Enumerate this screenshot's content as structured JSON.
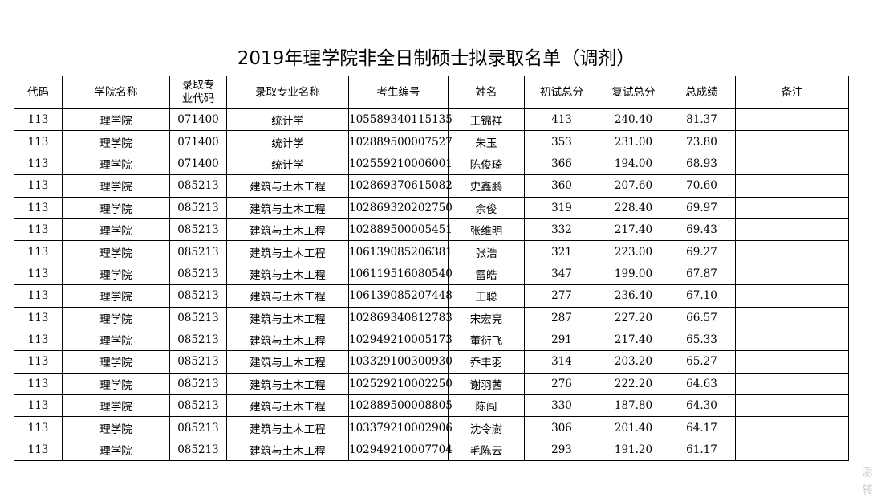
{
  "header": {
    "title": "2019年理学院非全日制硕士拟录取名单（调剂）"
  },
  "table": {
    "columns": [
      "代码",
      "学院名称",
      "录取专业代码",
      "录取专业名称",
      "考生编号",
      "姓名",
      "初试总分",
      "复试总分",
      "总成绩",
      "备注"
    ],
    "rows": [
      [
        "113",
        "理学院",
        "071400",
        "统计学",
        "105589340115135",
        "王锦祥",
        "413",
        "240.40",
        "81.37"
      ],
      [
        "113",
        "理学院",
        "071400",
        "统计学",
        "102889500007527",
        "朱玉",
        "353",
        "231.00",
        "73.80"
      ],
      [
        "113",
        "理学院",
        "071400",
        "统计学",
        "102559210006001",
        "陈俊琦",
        "366",
        "194.00",
        "68.93"
      ],
      [
        "113",
        "理学院",
        "085213",
        "建筑与土木工程",
        "102869370615082",
        "史鑫鹏",
        "360",
        "207.60",
        "70.60"
      ],
      [
        "113",
        "理学院",
        "085213",
        "建筑与土木工程",
        "102869320202750",
        "余俊",
        "319",
        "228.40",
        "69.97"
      ],
      [
        "113",
        "理学院",
        "085213",
        "建筑与土木工程",
        "102889500005451",
        "张维明",
        "332",
        "217.40",
        "69.43"
      ],
      [
        "113",
        "理学院",
        "085213",
        "建筑与土木工程",
        "106139085206381",
        "张浩",
        "321",
        "223.00",
        "69.27"
      ],
      [
        "113",
        "理学院",
        "085213",
        "建筑与土木工程",
        "106119516080540",
        "雷皓",
        "347",
        "199.00",
        "67.87"
      ],
      [
        "113",
        "理学院",
        "085213",
        "建筑与土木工程",
        "106139085207448",
        "王聪",
        "277",
        "236.40",
        "67.10"
      ],
      [
        "113",
        "理学院",
        "085213",
        "建筑与土木工程",
        "102869340812783",
        "宋宏亮",
        "287",
        "227.20",
        "66.57"
      ],
      [
        "113",
        "理学院",
        "085213",
        "建筑与土木工程",
        "102949210005173",
        "董衍飞",
        "291",
        "217.40",
        "65.33"
      ],
      [
        "113",
        "理学院",
        "085213",
        "建筑与土木工程",
        "103329100300930",
        "乔丰羽",
        "314",
        "203.20",
        "65.27"
      ],
      [
        "113",
        "理学院",
        "085213",
        "建筑与土木工程",
        "102529210002250",
        "谢羽茜",
        "276",
        "222.20",
        "64.63"
      ],
      [
        "113",
        "理学院",
        "085213",
        "建筑与土木工程",
        "102889500008805",
        "陈闯",
        "330",
        "187.80",
        "64.30"
      ],
      [
        "113",
        "理学院",
        "085213",
        "建筑与土木工程",
        "103379210002906",
        "沈令澍",
        "306",
        "201.40",
        "64.17"
      ],
      [
        "113",
        "理学院",
        "085213",
        "建筑与土木工程",
        "102949210007704",
        "毛陈云",
        "293",
        "191.20",
        "61.17"
      ]
    ]
  },
  "watermark": [
    "澎",
    "转"
  ]
}
